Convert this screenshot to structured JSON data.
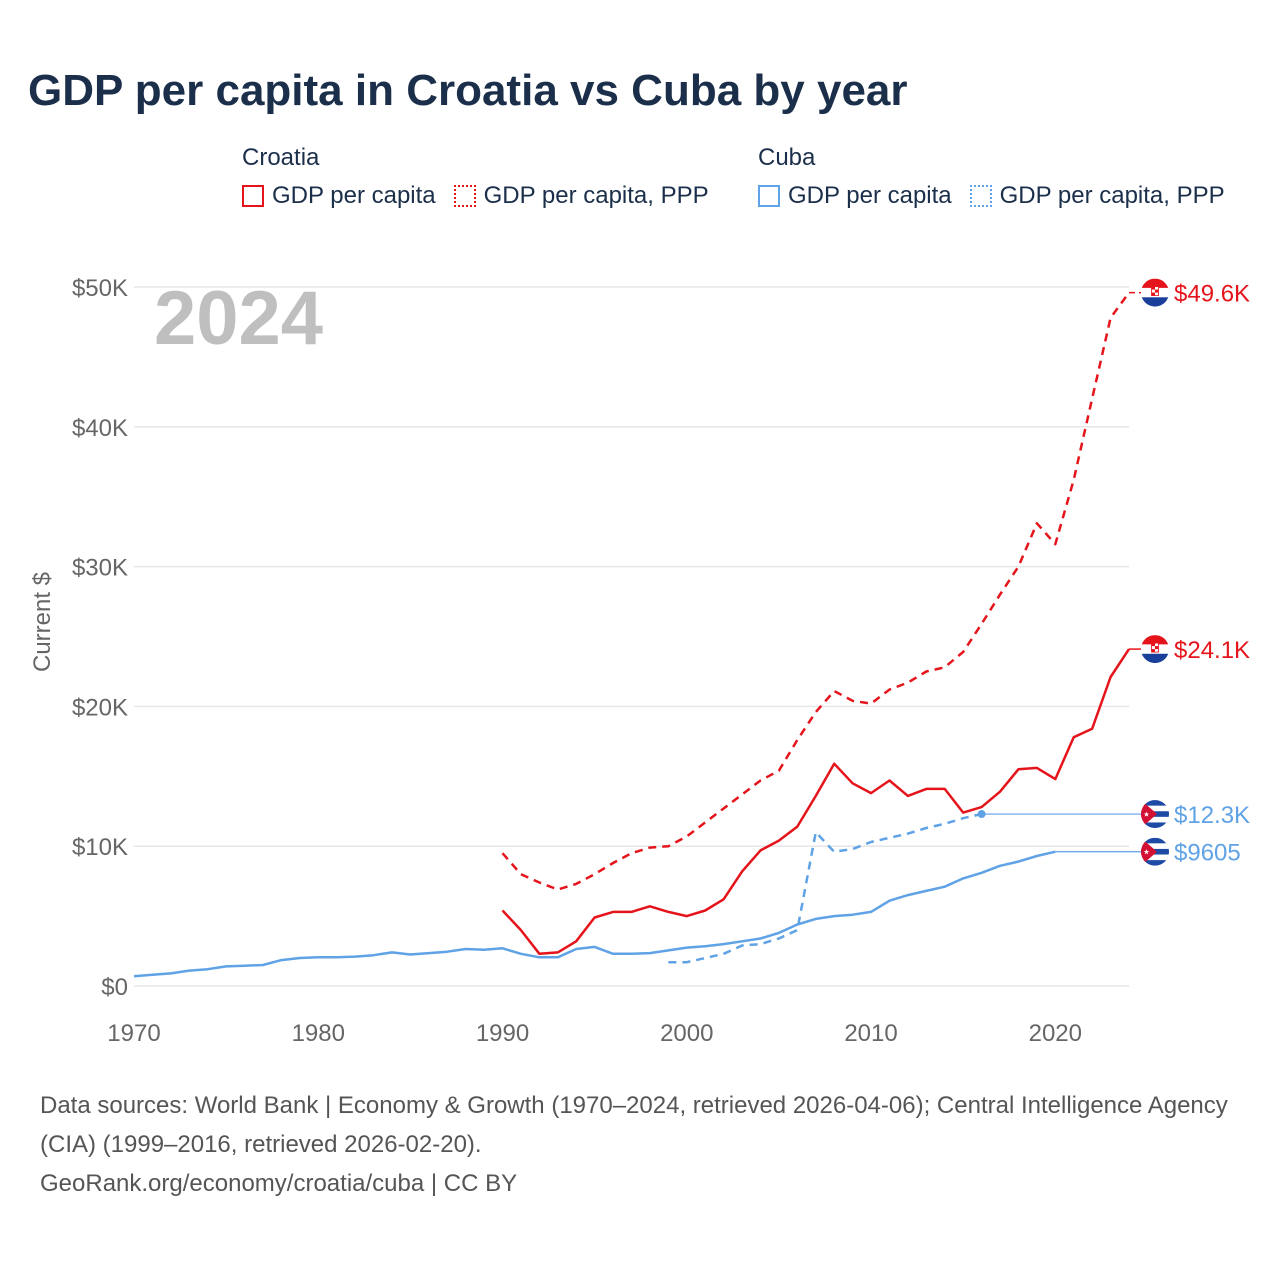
{
  "title": "GDP per capita in Croatia vs Cuba by year",
  "legend": {
    "groups": [
      {
        "name": "Croatia",
        "items": [
          {
            "label": "GDP per capita",
            "style": "solid",
            "color": "#e5141b"
          },
          {
            "label": "GDP per capita, PPP",
            "style": "dotted",
            "color": "#e5141b"
          }
        ]
      },
      {
        "name": "Cuba",
        "items": [
          {
            "label": "GDP per capita",
            "style": "solid",
            "color": "#5fa2e6"
          },
          {
            "label": "GDP per capita, PPP",
            "style": "dotted",
            "color": "#5fa2e6"
          }
        ]
      }
    ]
  },
  "year_watermark": "2024",
  "source": {
    "line1": "Data sources: World Bank | Economy & Growth (1970–2024, retrieved 2026-04-06); Central Intelligence Agency (CIA) (1999–2016, retrieved 2026-02-20).",
    "line2": "GeoRank.org/economy/croatia/cuba | CC BY"
  },
  "chart_data": {
    "type": "line",
    "title": "GDP per capita in Croatia vs Cuba by year",
    "xlabel": "",
    "ylabel": "Current $",
    "xlim": [
      1970,
      2024
    ],
    "ylim": [
      0,
      50000
    ],
    "x_ticks": [
      1970,
      1980,
      1990,
      2000,
      2010,
      2020
    ],
    "x_tick_labels": [
      "1970",
      "1980",
      "1990",
      "2000",
      "2010",
      "2020"
    ],
    "y_ticks": [
      0,
      10000,
      20000,
      30000,
      40000,
      50000
    ],
    "y_tick_labels": [
      "$0",
      "$10K",
      "$20K",
      "$30K",
      "$40K",
      "$50K"
    ],
    "grid": true,
    "legend_position": "top",
    "series": [
      {
        "name": "Croatia GDP per capita, PPP",
        "country": "Croatia",
        "color": "#e5141b",
        "dash": "dashed",
        "end_label": "$49.6K",
        "end_value": 49600,
        "connector_from_year": null,
        "points": [
          [
            1990,
            9500
          ],
          [
            1991,
            8000
          ],
          [
            1992,
            7400
          ],
          [
            1993,
            6900
          ],
          [
            1994,
            7300
          ],
          [
            1995,
            8000
          ],
          [
            1996,
            8800
          ],
          [
            1997,
            9500
          ],
          [
            1998,
            9900
          ],
          [
            1999,
            10000
          ],
          [
            2000,
            10700
          ],
          [
            2001,
            11700
          ],
          [
            2002,
            12700
          ],
          [
            2003,
            13700
          ],
          [
            2004,
            14700
          ],
          [
            2005,
            15400
          ],
          [
            2006,
            17600
          ],
          [
            2007,
            19600
          ],
          [
            2008,
            21100
          ],
          [
            2009,
            20400
          ],
          [
            2010,
            20200
          ],
          [
            2011,
            21200
          ],
          [
            2012,
            21700
          ],
          [
            2013,
            22500
          ],
          [
            2014,
            22800
          ],
          [
            2015,
            23900
          ],
          [
            2016,
            25900
          ],
          [
            2017,
            28000
          ],
          [
            2018,
            30000
          ],
          [
            2019,
            33100
          ],
          [
            2020,
            31600
          ],
          [
            2021,
            36200
          ],
          [
            2022,
            42000
          ],
          [
            2023,
            47800
          ],
          [
            2024,
            49600
          ]
        ]
      },
      {
        "name": "Croatia GDP per capita",
        "country": "Croatia",
        "color": "#e5141b",
        "dash": "solid",
        "end_label": "$24.1K",
        "end_value": 24100,
        "connector_from_year": null,
        "points": [
          [
            1990,
            5400
          ],
          [
            1991,
            4000
          ],
          [
            1992,
            2300
          ],
          [
            1993,
            2400
          ],
          [
            1994,
            3200
          ],
          [
            1995,
            4900
          ],
          [
            1996,
            5300
          ],
          [
            1997,
            5300
          ],
          [
            1998,
            5700
          ],
          [
            1999,
            5300
          ],
          [
            2000,
            5000
          ],
          [
            2001,
            5400
          ],
          [
            2002,
            6200
          ],
          [
            2003,
            8200
          ],
          [
            2004,
            9700
          ],
          [
            2005,
            10400
          ],
          [
            2006,
            11400
          ],
          [
            2007,
            13600
          ],
          [
            2008,
            15900
          ],
          [
            2009,
            14500
          ],
          [
            2010,
            13800
          ],
          [
            2011,
            14700
          ],
          [
            2012,
            13600
          ],
          [
            2013,
            14100
          ],
          [
            2014,
            14100
          ],
          [
            2015,
            12400
          ],
          [
            2016,
            12800
          ],
          [
            2017,
            13900
          ],
          [
            2018,
            15500
          ],
          [
            2019,
            15600
          ],
          [
            2020,
            14800
          ],
          [
            2021,
            17800
          ],
          [
            2022,
            18400
          ],
          [
            2023,
            22100
          ],
          [
            2024,
            24100
          ]
        ]
      },
      {
        "name": "Cuba GDP per capita, PPP",
        "country": "Cuba",
        "color": "#5fa2e6",
        "dash": "dashed",
        "end_label": "$12.3K",
        "end_value": 12300,
        "connector_from_year": 2016,
        "points": [
          [
            1999,
            1700
          ],
          [
            2000,
            1700
          ],
          [
            2001,
            2000
          ],
          [
            2002,
            2300
          ],
          [
            2003,
            2900
          ],
          [
            2004,
            3000
          ],
          [
            2005,
            3400
          ],
          [
            2006,
            4000
          ],
          [
            2007,
            11000
          ],
          [
            2008,
            9600
          ],
          [
            2009,
            9800
          ],
          [
            2010,
            10300
          ],
          [
            2011,
            10600
          ],
          [
            2012,
            10900
          ],
          [
            2013,
            11300
          ],
          [
            2014,
            11600
          ],
          [
            2015,
            12000
          ],
          [
            2016,
            12300
          ]
        ]
      },
      {
        "name": "Cuba GDP per capita",
        "country": "Cuba",
        "color": "#5fa2e6",
        "dash": "solid",
        "end_label": "$9605",
        "end_value": 9605,
        "connector_from_year": 2020,
        "points": [
          [
            1970,
            700
          ],
          [
            1971,
            800
          ],
          [
            1972,
            900
          ],
          [
            1973,
            1100
          ],
          [
            1974,
            1200
          ],
          [
            1975,
            1400
          ],
          [
            1976,
            1450
          ],
          [
            1977,
            1500
          ],
          [
            1978,
            1850
          ],
          [
            1979,
            2000
          ],
          [
            1980,
            2050
          ],
          [
            1981,
            2050
          ],
          [
            1982,
            2100
          ],
          [
            1983,
            2200
          ],
          [
            1984,
            2400
          ],
          [
            1985,
            2250
          ],
          [
            1986,
            2350
          ],
          [
            1987,
            2450
          ],
          [
            1988,
            2650
          ],
          [
            1989,
            2600
          ],
          [
            1990,
            2700
          ],
          [
            1991,
            2300
          ],
          [
            1992,
            2050
          ],
          [
            1993,
            2050
          ],
          [
            1994,
            2650
          ],
          [
            1995,
            2800
          ],
          [
            1996,
            2300
          ],
          [
            1997,
            2300
          ],
          [
            1998,
            2350
          ],
          [
            1999,
            2550
          ],
          [
            2000,
            2750
          ],
          [
            2001,
            2850
          ],
          [
            2002,
            3000
          ],
          [
            2003,
            3200
          ],
          [
            2004,
            3400
          ],
          [
            2005,
            3800
          ],
          [
            2006,
            4400
          ],
          [
            2007,
            4800
          ],
          [
            2008,
            5000
          ],
          [
            2009,
            5100
          ],
          [
            2010,
            5300
          ],
          [
            2011,
            6100
          ],
          [
            2012,
            6500
          ],
          [
            2013,
            6800
          ],
          [
            2014,
            7100
          ],
          [
            2015,
            7700
          ],
          [
            2016,
            8100
          ],
          [
            2017,
            8600
          ],
          [
            2018,
            8900
          ],
          [
            2019,
            9300
          ],
          [
            2020,
            9605
          ]
        ]
      }
    ]
  }
}
